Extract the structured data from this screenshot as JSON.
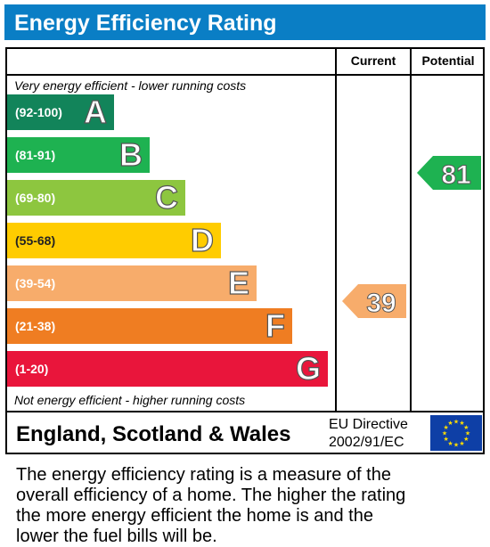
{
  "title": "Energy Efficiency Rating",
  "columns": {
    "current": "Current",
    "potential": "Potential"
  },
  "notes": {
    "top": "Very energy efficient - lower running costs",
    "bottom": "Not energy efficient - higher running costs"
  },
  "chart_data": {
    "type": "bar",
    "title": "Energy Efficiency Rating",
    "categories": [
      "A",
      "B",
      "C",
      "D",
      "E",
      "F",
      "G"
    ],
    "ranges": [
      "(92-100)",
      "(81-91)",
      "(69-80)",
      "(55-68)",
      "(39-54)",
      "(21-38)",
      "(1-20)"
    ],
    "colors": [
      "#12845a",
      "#1eb251",
      "#8dc63f",
      "#ffcc00",
      "#f7ac6b",
      "#ef7d22",
      "#e9153b"
    ],
    "current": {
      "value": 39,
      "band": "E",
      "color": "#f7ac6b"
    },
    "potential": {
      "value": 81,
      "band": "B",
      "color": "#1eb251"
    }
  },
  "footer": {
    "region": "England, Scotland & Wales",
    "directive_line1": "EU Directive",
    "directive_line2": "2002/91/EC"
  },
  "description": [
    "The energy efficiency rating is a measure of the",
    "overall efficiency of a home. The higher the rating",
    "the more energy efficient the home is and the",
    "lower the fuel bills will be."
  ]
}
